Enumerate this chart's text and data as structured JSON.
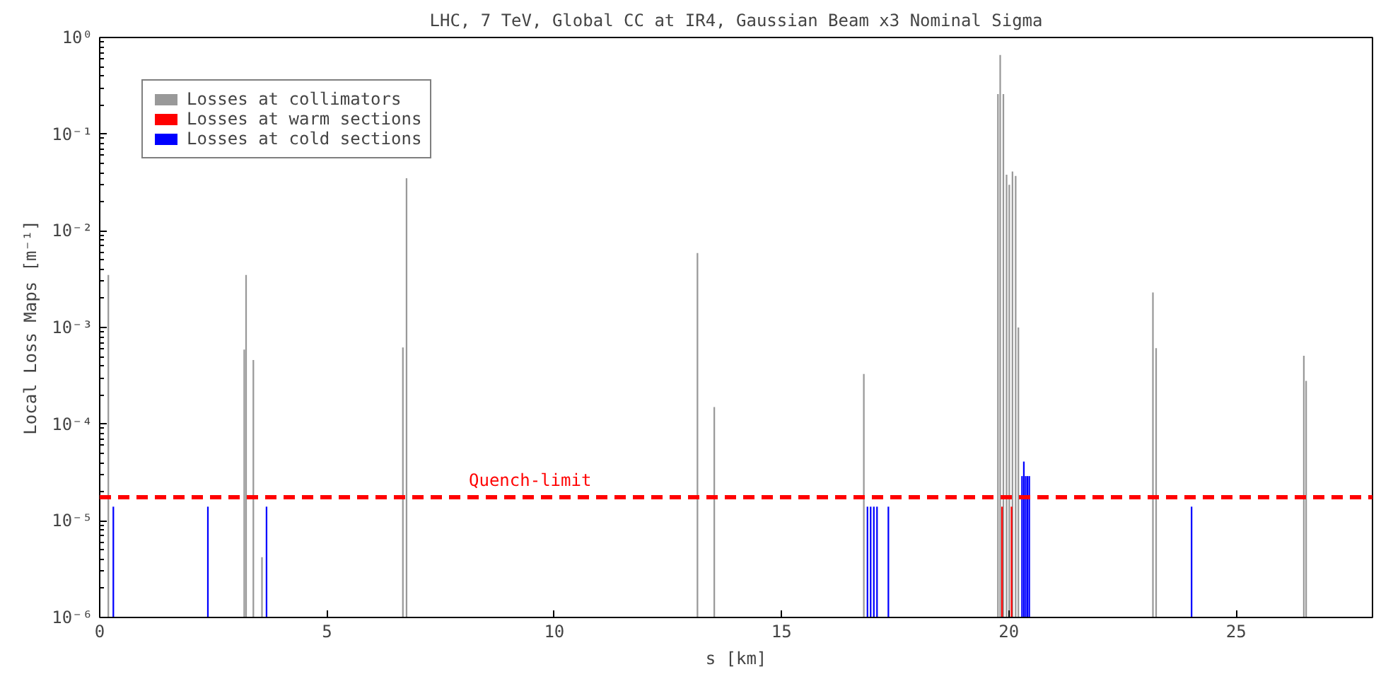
{
  "chart_data": {
    "type": "bar",
    "title": "LHC, 7 TeV, Global CC at IR4, Gaussian Beam x3 Nominal Sigma",
    "xlabel": "s [km]",
    "ylabel": "Local Loss Maps [m⁻¹]",
    "log": "y",
    "xlim": [
      0,
      28
    ],
    "ylim": [
      1e-06,
      1
    ],
    "xticks": [
      0,
      5,
      10,
      15,
      20,
      25
    ],
    "yticks": [
      {
        "value": 1e-06,
        "label": "10⁻⁶"
      },
      {
        "value": 1e-05,
        "label": "10⁻⁵"
      },
      {
        "value": 0.0001,
        "label": "10⁻⁴"
      },
      {
        "value": 0.001,
        "label": "10⁻³"
      },
      {
        "value": 0.01,
        "label": "10⁻²"
      },
      {
        "value": 0.1,
        "label": "10⁻¹"
      },
      {
        "value": 1,
        "label": "10⁰"
      }
    ],
    "grid": false,
    "legend": "top left",
    "series": [
      {
        "name": "Losses at collimators",
        "color": "#999999",
        "x": [
          0.19,
          3.18,
          3.22,
          3.38,
          3.57,
          6.67,
          6.75,
          13.15,
          13.52,
          16.81,
          19.76,
          19.81,
          19.88,
          19.95,
          20.01,
          20.08,
          20.15,
          20.21,
          23.17,
          23.24,
          26.49,
          26.54
        ],
        "values": [
          0.0035,
          0.00059,
          0.0035,
          0.00046,
          4.2e-06,
          0.00062,
          0.035,
          0.0059,
          0.00015,
          0.00033,
          0.26,
          0.66,
          0.26,
          0.038,
          0.03,
          0.041,
          0.037,
          0.001,
          0.0023,
          0.00061,
          0.00051,
          0.00028
        ]
      },
      {
        "name": "Losses at warm sections",
        "color": "#ff0000",
        "x": [
          19.85,
          20.06
        ],
        "values": [
          1.4e-05,
          1.4e-05
        ]
      },
      {
        "name": "Losses at cold sections",
        "color": "#0000ff",
        "x": [
          0.3,
          2.38,
          3.67,
          16.89,
          16.96,
          17.03,
          17.1,
          17.35,
          20.29,
          20.33,
          20.37,
          20.41,
          20.45,
          24.02
        ],
        "values": [
          1.4e-05,
          1.4e-05,
          1.4e-05,
          1.4e-05,
          1.4e-05,
          1.4e-05,
          1.4e-05,
          1.4e-05,
          2.9e-05,
          4.1e-05,
          2.9e-05,
          2.9e-05,
          2.9e-05,
          1.4e-05
        ]
      }
    ],
    "ref_lines": [
      {
        "axis": "y",
        "value": 1.75e-05,
        "label": "Quench-limit",
        "color": "#ff0000",
        "line_style": "dashed"
      }
    ]
  }
}
